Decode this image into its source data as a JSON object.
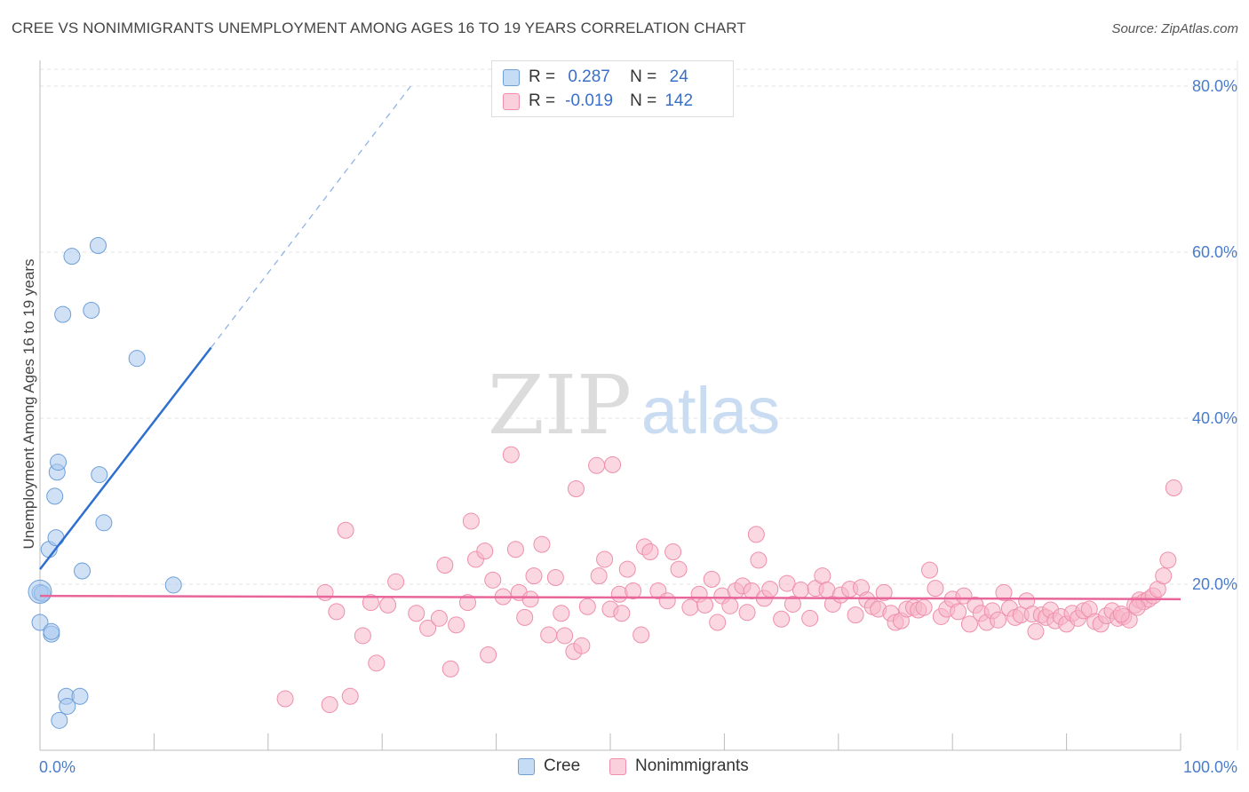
{
  "title": "CREE VS NONIMMIGRANTS UNEMPLOYMENT AMONG AGES 16 TO 19 YEARS CORRELATION CHART",
  "source": "Source: ZipAtlas.com",
  "watermark": {
    "zip": "ZIP",
    "atlas": "atlas"
  },
  "legend": {
    "rows": [
      {
        "r_label": "R = ",
        "r_value": "0.287",
        "n_label": "N = ",
        "n_value": "24",
        "color": "#a9c8ee"
      },
      {
        "r_label": "R = ",
        "r_value": "-0.019",
        "n_label": "N = ",
        "n_value": "142",
        "color": "#f7b6c8"
      }
    ]
  },
  "bottom_legend": [
    {
      "label": "Cree",
      "color": "#a9c8ee"
    },
    {
      "label": "Nonimmigrants",
      "color": "#f7b6c8"
    }
  ],
  "chart_data": {
    "type": "scatter",
    "ylabel": "Unemployment Among Ages 16 to 19 years",
    "xlim": [
      0,
      100
    ],
    "ylim": [
      0,
      80
    ],
    "x_tick_labels": [
      "0.0%",
      "100.0%"
    ],
    "y_ticks": [
      20,
      40,
      60,
      80
    ],
    "y_tick_labels": [
      "20.0%",
      "40.0%",
      "60.0%",
      "80.0%"
    ],
    "grid": true,
    "series": [
      {
        "name": "Cree",
        "color": "#a9c8ee",
        "stroke": "#6d9fd8",
        "trend_color": "#2e6fd0",
        "trend": {
          "x0": 0,
          "y0": 21.8,
          "x1": 15,
          "y1": 48.5,
          "dash_to_x": 32.5,
          "dash_to_y": 80
        },
        "points": [
          [
            0.0,
            19.0
          ],
          [
            0.0,
            15.4
          ],
          [
            0.2,
            18.9
          ],
          [
            0.8,
            24.2
          ],
          [
            1.0,
            14.0
          ],
          [
            1.0,
            14.3
          ],
          [
            1.3,
            30.6
          ],
          [
            1.4,
            25.6
          ],
          [
            1.5,
            33.5
          ],
          [
            1.6,
            34.7
          ],
          [
            1.7,
            3.6
          ],
          [
            2.0,
            52.5
          ],
          [
            2.3,
            6.5
          ],
          [
            2.4,
            5.3
          ],
          [
            2.8,
            59.5
          ],
          [
            3.5,
            6.5
          ],
          [
            3.7,
            21.6
          ],
          [
            4.5,
            53.0
          ],
          [
            5.1,
            60.8
          ],
          [
            5.2,
            33.2
          ],
          [
            5.6,
            27.4
          ],
          [
            8.5,
            47.2
          ],
          [
            11.7,
            19.9
          ],
          [
            0.0,
            19.1
          ]
        ]
      },
      {
        "name": "Nonimmigrants",
        "color": "#f7b6c8",
        "stroke": "#ee8fab",
        "trend_color": "#e8669a",
        "trend": {
          "x0": 0,
          "y0": 18.6,
          "x1": 100,
          "y1": 18.2
        },
        "points": [
          [
            21.5,
            6.2
          ],
          [
            25.0,
            19.0
          ],
          [
            25.4,
            5.5
          ],
          [
            26.0,
            16.7
          ],
          [
            26.8,
            26.5
          ],
          [
            27.2,
            6.5
          ],
          [
            28.3,
            13.8
          ],
          [
            29.0,
            17.8
          ],
          [
            29.5,
            10.5
          ],
          [
            30.5,
            17.5
          ],
          [
            31.2,
            20.3
          ],
          [
            33.0,
            16.5
          ],
          [
            34.0,
            14.7
          ],
          [
            35.0,
            15.9
          ],
          [
            35.5,
            22.3
          ],
          [
            36.0,
            9.8
          ],
          [
            36.5,
            15.1
          ],
          [
            37.5,
            17.8
          ],
          [
            37.8,
            27.6
          ],
          [
            38.2,
            23.0
          ],
          [
            39.0,
            24.0
          ],
          [
            39.3,
            11.5
          ],
          [
            39.7,
            20.5
          ],
          [
            40.6,
            18.5
          ],
          [
            41.3,
            35.6
          ],
          [
            41.7,
            24.2
          ],
          [
            42.0,
            19.0
          ],
          [
            42.5,
            16.0
          ],
          [
            43.0,
            18.2
          ],
          [
            43.3,
            21.0
          ],
          [
            44.0,
            24.8
          ],
          [
            44.6,
            13.9
          ],
          [
            45.2,
            20.8
          ],
          [
            45.7,
            16.5
          ],
          [
            46.0,
            13.8
          ],
          [
            46.8,
            11.9
          ],
          [
            47.0,
            31.5
          ],
          [
            47.5,
            12.6
          ],
          [
            48.0,
            17.3
          ],
          [
            48.8,
            34.3
          ],
          [
            49.0,
            21.0
          ],
          [
            49.5,
            23.0
          ],
          [
            50.0,
            17.0
          ],
          [
            50.2,
            34.4
          ],
          [
            50.8,
            18.8
          ],
          [
            51.0,
            16.5
          ],
          [
            51.5,
            21.8
          ],
          [
            52.0,
            19.2
          ],
          [
            52.7,
            13.9
          ],
          [
            53.0,
            24.5
          ],
          [
            53.5,
            23.9
          ],
          [
            54.2,
            19.2
          ],
          [
            55.0,
            18.0
          ],
          [
            55.5,
            23.9
          ],
          [
            56.0,
            21.8
          ],
          [
            57.0,
            17.2
          ],
          [
            57.8,
            18.8
          ],
          [
            58.3,
            17.5
          ],
          [
            58.9,
            20.6
          ],
          [
            59.4,
            15.4
          ],
          [
            59.8,
            18.6
          ],
          [
            60.5,
            17.4
          ],
          [
            61.0,
            19.2
          ],
          [
            61.6,
            19.8
          ],
          [
            62.0,
            16.6
          ],
          [
            62.4,
            19.2
          ],
          [
            62.8,
            26.0
          ],
          [
            63.0,
            22.9
          ],
          [
            63.5,
            18.3
          ],
          [
            64.0,
            19.4
          ],
          [
            65.0,
            15.8
          ],
          [
            65.5,
            20.1
          ],
          [
            66.0,
            17.6
          ],
          [
            66.7,
            19.3
          ],
          [
            67.5,
            15.9
          ],
          [
            68.0,
            19.5
          ],
          [
            68.6,
            21.0
          ],
          [
            69.0,
            19.3
          ],
          [
            69.5,
            17.6
          ],
          [
            70.2,
            18.7
          ],
          [
            71.0,
            19.4
          ],
          [
            71.5,
            16.3
          ],
          [
            72.0,
            19.6
          ],
          [
            72.5,
            18.1
          ],
          [
            73.0,
            17.3
          ],
          [
            73.5,
            17.0
          ],
          [
            74.0,
            19.0
          ],
          [
            74.6,
            16.5
          ],
          [
            75.0,
            15.4
          ],
          [
            75.5,
            15.6
          ],
          [
            76.0,
            17.0
          ],
          [
            76.6,
            17.2
          ],
          [
            77.0,
            16.9
          ],
          [
            77.5,
            17.2
          ],
          [
            78.0,
            21.7
          ],
          [
            78.5,
            19.5
          ],
          [
            79.0,
            16.1
          ],
          [
            79.5,
            17.0
          ],
          [
            80.0,
            18.2
          ],
          [
            80.5,
            16.7
          ],
          [
            81.0,
            18.6
          ],
          [
            81.5,
            15.2
          ],
          [
            82.0,
            17.5
          ],
          [
            82.5,
            16.5
          ],
          [
            83.0,
            15.4
          ],
          [
            83.5,
            16.8
          ],
          [
            84.0,
            15.7
          ],
          [
            84.5,
            19.0
          ],
          [
            85.0,
            17.1
          ],
          [
            85.5,
            16.0
          ],
          [
            86.0,
            16.3
          ],
          [
            86.5,
            18.0
          ],
          [
            87.0,
            16.4
          ],
          [
            87.3,
            14.3
          ],
          [
            87.8,
            16.3
          ],
          [
            88.2,
            16.0
          ],
          [
            88.6,
            16.9
          ],
          [
            89.0,
            15.6
          ],
          [
            89.5,
            16.1
          ],
          [
            90.0,
            15.2
          ],
          [
            90.5,
            16.5
          ],
          [
            91.0,
            15.9
          ],
          [
            91.5,
            16.8
          ],
          [
            92.0,
            17.0
          ],
          [
            92.5,
            15.5
          ],
          [
            93.0,
            15.2
          ],
          [
            93.5,
            16.2
          ],
          [
            94.0,
            16.8
          ],
          [
            94.5,
            15.9
          ],
          [
            95.0,
            16.1
          ],
          [
            95.5,
            15.7
          ],
          [
            96.0,
            17.5
          ],
          [
            96.4,
            18.1
          ],
          [
            96.8,
            17.9
          ],
          [
            97.2,
            18.2
          ],
          [
            97.6,
            18.6
          ],
          [
            98.0,
            19.4
          ],
          [
            98.5,
            21.0
          ],
          [
            98.9,
            22.9
          ],
          [
            99.4,
            31.6
          ],
          [
            96.2,
            17.2
          ],
          [
            94.8,
            16.4
          ]
        ]
      }
    ]
  }
}
